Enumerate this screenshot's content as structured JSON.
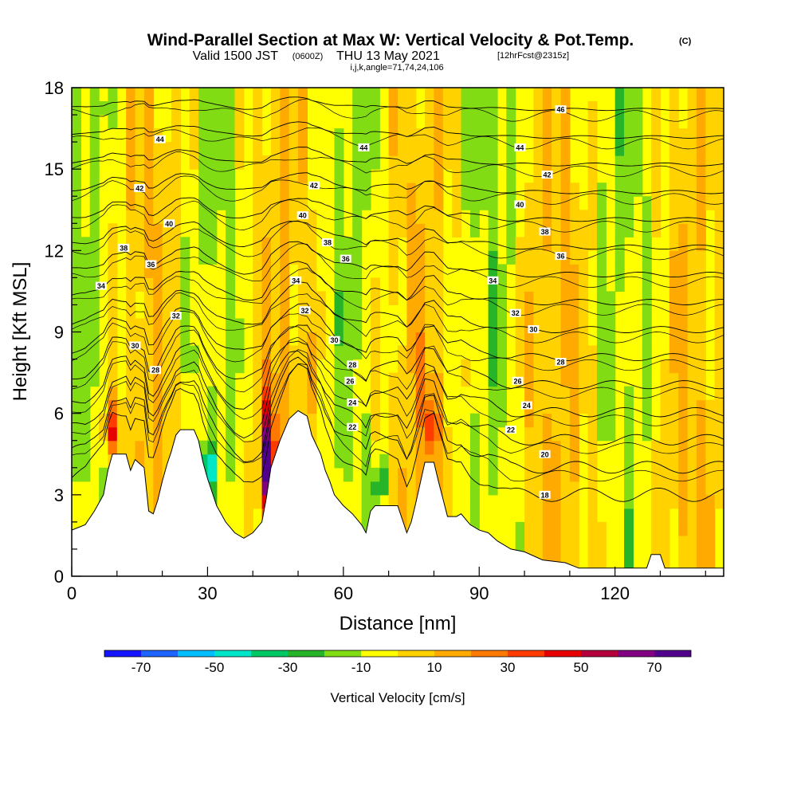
{
  "title": {
    "main": "Wind-Parallel Section at Max W: Vertical Velocity & Pot.Temp.",
    "copyright": "(C)",
    "valid_prefix": "Valid 1500 JST",
    "valid_utc": "(0600Z)",
    "valid_date": "THU 13 May 2021",
    "forecast": "[12hrFcst@2315z]",
    "indices": "i,j,k,angle=71,74,24,106"
  },
  "chart_data": {
    "type": "heatmap",
    "xlabel": "Distance [nm]",
    "ylabel": "Height [Kft MSL]",
    "xlim": [
      0,
      144
    ],
    "ylim": [
      0,
      18
    ],
    "x_ticks": [
      0,
      30,
      60,
      90,
      120
    ],
    "x_tick_labels": [
      "0",
      "30",
      "60",
      "90",
      "120"
    ],
    "y_ticks": [
      0,
      3,
      6,
      9,
      12,
      15,
      18
    ],
    "y_tick_labels": [
      "0",
      "3",
      "6",
      "9",
      "12",
      "15",
      "18"
    ],
    "colorbar": {
      "title": "Vertical Velocity [cm/s]",
      "bounds": [
        -80,
        80
      ],
      "step": 10,
      "tick_values": [
        -70,
        -50,
        -30,
        -10,
        10,
        30,
        50,
        70
      ],
      "tick_labels": [
        "-70",
        "-50",
        "-30",
        "-10",
        "10",
        "30",
        "50",
        "70"
      ],
      "colors": [
        "#1414ff",
        "#1e64ff",
        "#00beff",
        "#00e6c8",
        "#00c864",
        "#28b428",
        "#82dc14",
        "#ffff00",
        "#ffd200",
        "#ffaa00",
        "#ff7800",
        "#ff3c00",
        "#e60000",
        "#b4003c",
        "#820082",
        "#50008c"
      ]
    },
    "terrain": [
      [
        0,
        1.7
      ],
      [
        3,
        1.9
      ],
      [
        5,
        2.4
      ],
      [
        7,
        3.0
      ],
      [
        8,
        3.9
      ],
      [
        9,
        4.5
      ],
      [
        12,
        4.5
      ],
      [
        13,
        3.9
      ],
      [
        14,
        4.3
      ],
      [
        16,
        4.0
      ],
      [
        17,
        2.4
      ],
      [
        18,
        2.3
      ],
      [
        19,
        2.8
      ],
      [
        20,
        3.5
      ],
      [
        21,
        4.1
      ],
      [
        22,
        4.6
      ],
      [
        23,
        5.2
      ],
      [
        24,
        5.4
      ],
      [
        27,
        5.4
      ],
      [
        28,
        5.0
      ],
      [
        29,
        4.2
      ],
      [
        30,
        3.6
      ],
      [
        31,
        3.1
      ],
      [
        32,
        2.6
      ],
      [
        34,
        2.0
      ],
      [
        36,
        1.6
      ],
      [
        38,
        1.4
      ],
      [
        40,
        1.6
      ],
      [
        42,
        2.0
      ],
      [
        43,
        2.9
      ],
      [
        44,
        4.0
      ],
      [
        46,
        5.0
      ],
      [
        48,
        5.8
      ],
      [
        50,
        6.1
      ],
      [
        52,
        5.9
      ],
      [
        53,
        5.2
      ],
      [
        55,
        4.5
      ],
      [
        56,
        3.9
      ],
      [
        57,
        3.5
      ],
      [
        58,
        3.0
      ],
      [
        60,
        2.6
      ],
      [
        62,
        2.3
      ],
      [
        64,
        1.9
      ],
      [
        65,
        1.6
      ],
      [
        66,
        2.4
      ],
      [
        67,
        2.6
      ],
      [
        69,
        2.6
      ],
      [
        72,
        2.6
      ],
      [
        73,
        2.1
      ],
      [
        74,
        1.6
      ],
      [
        75,
        2.0
      ],
      [
        76,
        2.7
      ],
      [
        78,
        4.2
      ],
      [
        80,
        4.2
      ],
      [
        81,
        3.5
      ],
      [
        83,
        2.2
      ],
      [
        85,
        2.2
      ],
      [
        86,
        2.3
      ],
      [
        88,
        1.9
      ],
      [
        90,
        1.7
      ],
      [
        92,
        1.6
      ],
      [
        94,
        1.3
      ],
      [
        97,
        1.0
      ],
      [
        100,
        0.9
      ],
      [
        104,
        0.6
      ],
      [
        109,
        0.5
      ],
      [
        112,
        0.3
      ],
      [
        118,
        0.3
      ],
      [
        124,
        0.3
      ],
      [
        127,
        0.3
      ],
      [
        128,
        0.8
      ],
      [
        130,
        0.8
      ],
      [
        131,
        0.3
      ],
      [
        144,
        0.3
      ]
    ],
    "theta_levels": [
      18,
      20,
      22,
      24,
      26,
      28,
      30,
      32,
      34,
      36,
      38,
      40,
      42,
      44,
      46
    ],
    "theta_labels": [
      {
        "label": "46",
        "x": 108,
        "y": 17.2
      },
      {
        "label": "44",
        "x": 19.5,
        "y": 16.1
      },
      {
        "label": "44",
        "x": 64.5,
        "y": 15.8
      },
      {
        "label": "44",
        "x": 99,
        "y": 15.8
      },
      {
        "label": "42",
        "x": 15,
        "y": 14.3
      },
      {
        "label": "42",
        "x": 53.5,
        "y": 14.4
      },
      {
        "label": "42",
        "x": 105,
        "y": 14.8
      },
      {
        "label": "40",
        "x": 21.5,
        "y": 13.0
      },
      {
        "label": "40",
        "x": 51,
        "y": 13.3
      },
      {
        "label": "40",
        "x": 99,
        "y": 13.7
      },
      {
        "label": "38",
        "x": 11.5,
        "y": 12.1
      },
      {
        "label": "38",
        "x": 56.5,
        "y": 12.3
      },
      {
        "label": "38",
        "x": 104.5,
        "y": 12.7
      },
      {
        "label": "36",
        "x": 17.5,
        "y": 11.5
      },
      {
        "label": "36",
        "x": 60.5,
        "y": 11.7
      },
      {
        "label": "36",
        "x": 108,
        "y": 11.8
      },
      {
        "label": "34",
        "x": 6.5,
        "y": 10.7
      },
      {
        "label": "34",
        "x": 49.5,
        "y": 10.9
      },
      {
        "label": "34",
        "x": 93,
        "y": 10.9
      },
      {
        "label": "32",
        "x": 23,
        "y": 9.6
      },
      {
        "label": "32",
        "x": 51.5,
        "y": 9.8
      },
      {
        "label": "32",
        "x": 98,
        "y": 9.7
      },
      {
        "label": "30",
        "x": 14,
        "y": 8.5
      },
      {
        "label": "30",
        "x": 58,
        "y": 8.7
      },
      {
        "label": "30",
        "x": 102,
        "y": 9.1
      },
      {
        "label": "28",
        "x": 18.5,
        "y": 7.6
      },
      {
        "label": "28",
        "x": 62,
        "y": 7.8
      },
      {
        "label": "28",
        "x": 108,
        "y": 7.9
      },
      {
        "label": "26",
        "x": 61.5,
        "y": 7.2
      },
      {
        "label": "26",
        "x": 98.5,
        "y": 7.2
      },
      {
        "label": "24",
        "x": 62,
        "y": 6.4
      },
      {
        "label": "24",
        "x": 100.5,
        "y": 6.3
      },
      {
        "label": "22",
        "x": 62,
        "y": 5.5
      },
      {
        "label": "22",
        "x": 97,
        "y": 5.4
      },
      {
        "label": "20",
        "x": 104.5,
        "y": 4.5
      },
      {
        "label": "18",
        "x": 104.5,
        "y": 3.0
      }
    ],
    "notable_features": [
      {
        "description": "Strong updraft",
        "x": 43.5,
        "y_range": [
          2.0,
          6.5
        ],
        "value": 70
      },
      {
        "description": "Downdraft",
        "x": 30,
        "y_range": [
          3.3,
          4.7
        ],
        "value": -50
      },
      {
        "description": "Downdraft",
        "x": 68,
        "y_range": [
          2.8,
          4.2
        ],
        "value": -30
      },
      {
        "description": "Updraft",
        "x": 8.5,
        "y_range": [
          4.5,
          6.3
        ],
        "value": 40
      },
      {
        "description": "Updraft",
        "x": 79.5,
        "y_range": [
          4.3,
          6.8
        ],
        "value": 30
      }
    ]
  }
}
